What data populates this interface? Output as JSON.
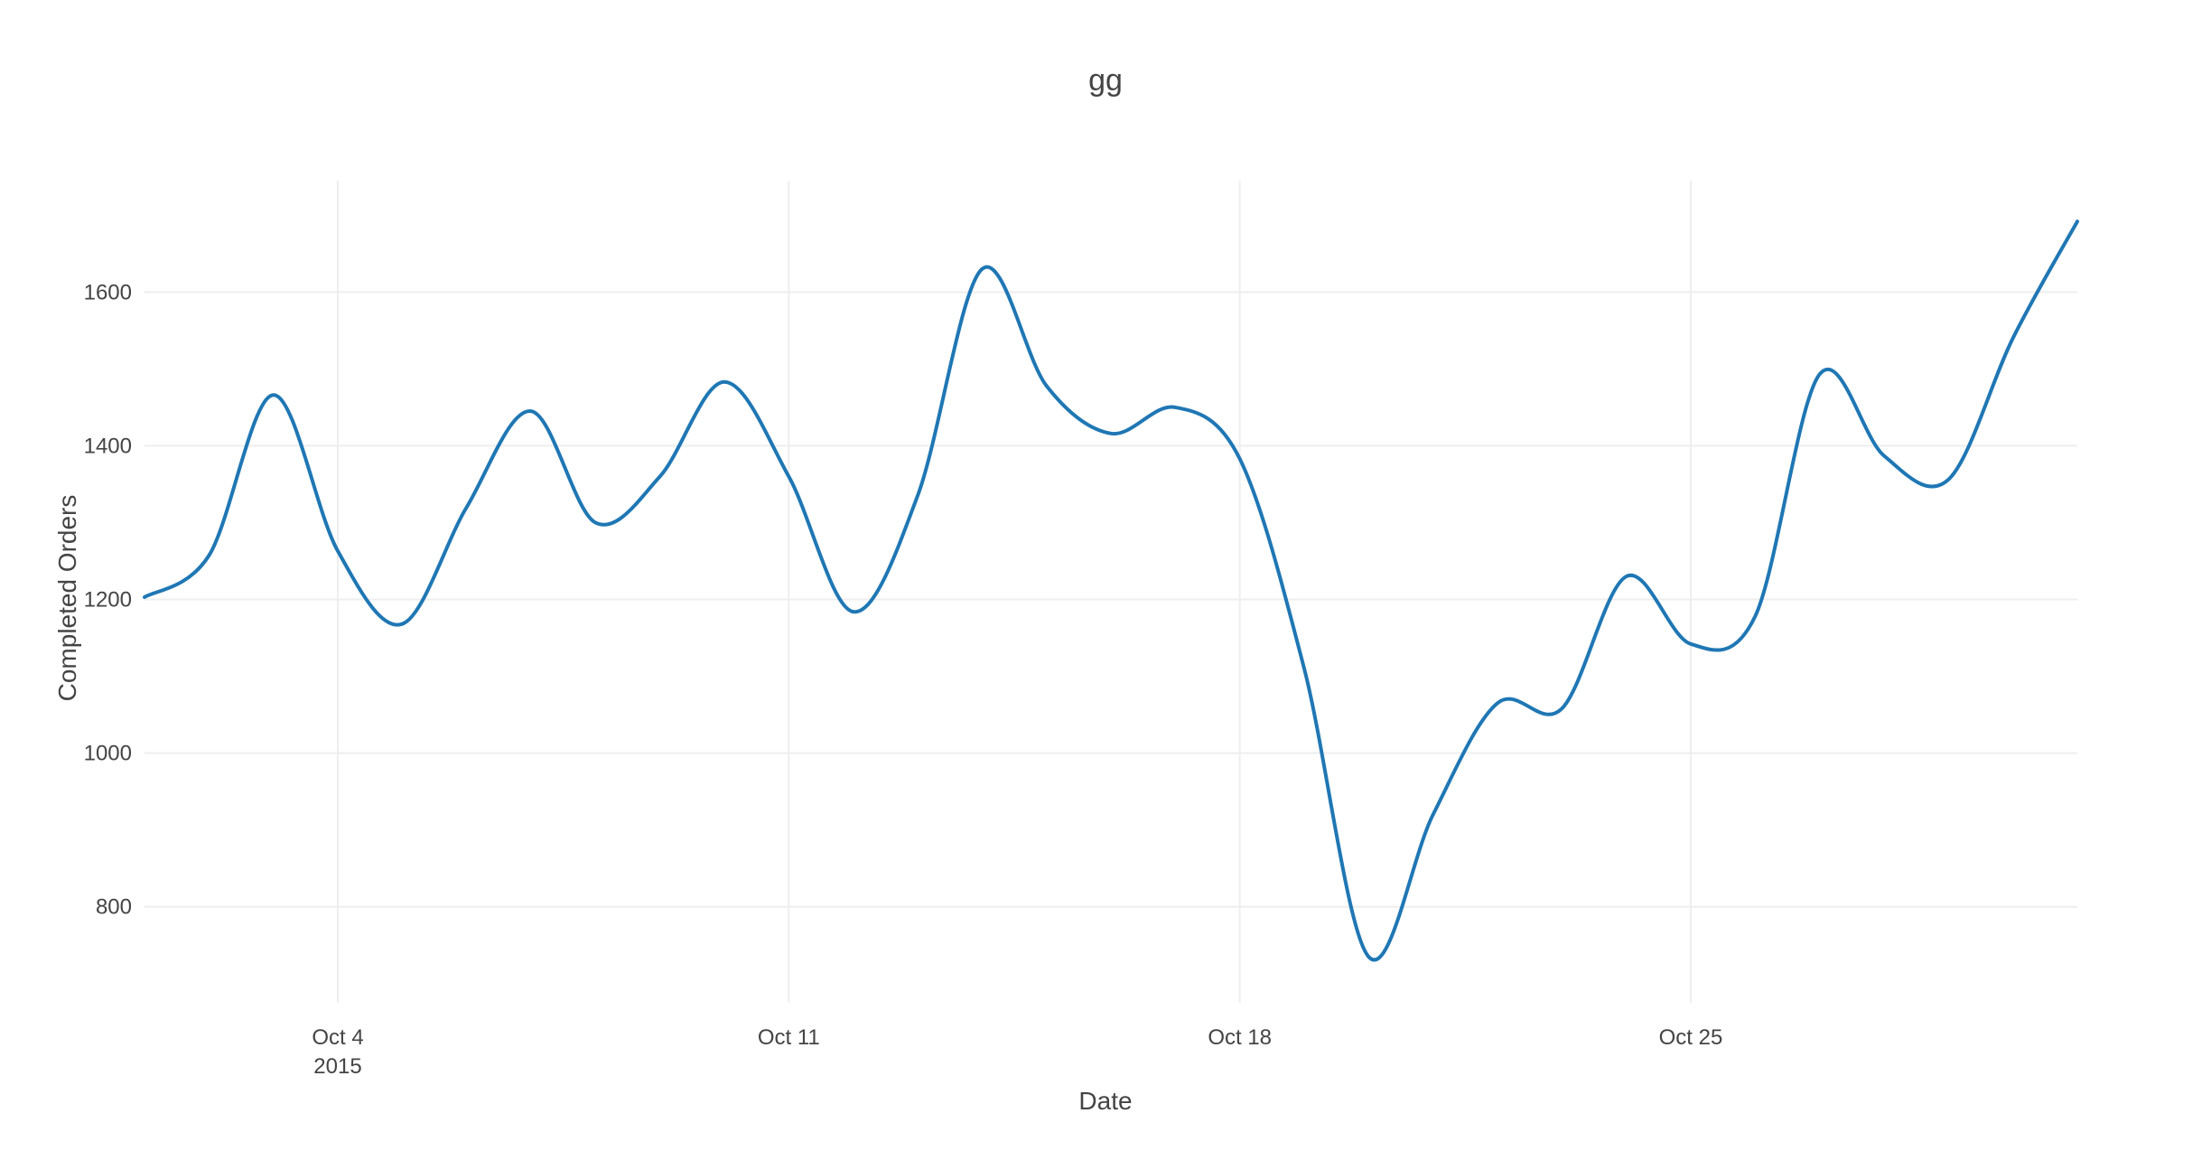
{
  "chart_data": {
    "type": "line",
    "title": "gg",
    "xlabel": "Date",
    "ylabel": "Completed Orders",
    "x": [
      "2015-10-01",
      "2015-10-02",
      "2015-10-03",
      "2015-10-04",
      "2015-10-05",
      "2015-10-06",
      "2015-10-07",
      "2015-10-08",
      "2015-10-09",
      "2015-10-10",
      "2015-10-11",
      "2015-10-12",
      "2015-10-13",
      "2015-10-14",
      "2015-10-15",
      "2015-10-16",
      "2015-10-17",
      "2015-10-18",
      "2015-10-19",
      "2015-10-20",
      "2015-10-21",
      "2015-10-22",
      "2015-10-23",
      "2015-10-24",
      "2015-10-25",
      "2015-10-26",
      "2015-10-27",
      "2015-10-28",
      "2015-10-29",
      "2015-10-30"
    ],
    "series": [
      {
        "values": [
          1203,
          1257,
          1466,
          1263,
          1168,
          1320,
          1445,
          1300,
          1360,
          1483,
          1360,
          1184,
          1335,
          1630,
          1478,
          1416,
          1450,
          1383,
          1110,
          735,
          920,
          1065,
          1058,
          1230,
          1142,
          1178,
          1493,
          1387,
          1356,
          1540
        ]
      }
    ],
    "x_end": "2015-10-31T00:00",
    "y_end": 1692,
    "xlim": [
      "2015-10-01",
      "2015-10-31"
    ],
    "ylim": [
      675,
      1745
    ],
    "xticks": [
      {
        "label": "Oct 4",
        "sublabel": "2015"
      },
      {
        "label": "Oct 11",
        "sublabel": ""
      },
      {
        "label": "Oct 18",
        "sublabel": ""
      },
      {
        "label": "Oct 25",
        "sublabel": ""
      }
    ],
    "xtick_dates": [
      "2015-10-04",
      "2015-10-11",
      "2015-10-18",
      "2015-10-25"
    ],
    "yticks": [
      800,
      1000,
      1200,
      1400,
      1600
    ],
    "ytick_labels": [
      "800",
      "1000",
      "1200",
      "1400",
      "1600"
    ],
    "line_shape": "spline",
    "color": "#1f77b4",
    "grid": true,
    "legend": "none"
  }
}
